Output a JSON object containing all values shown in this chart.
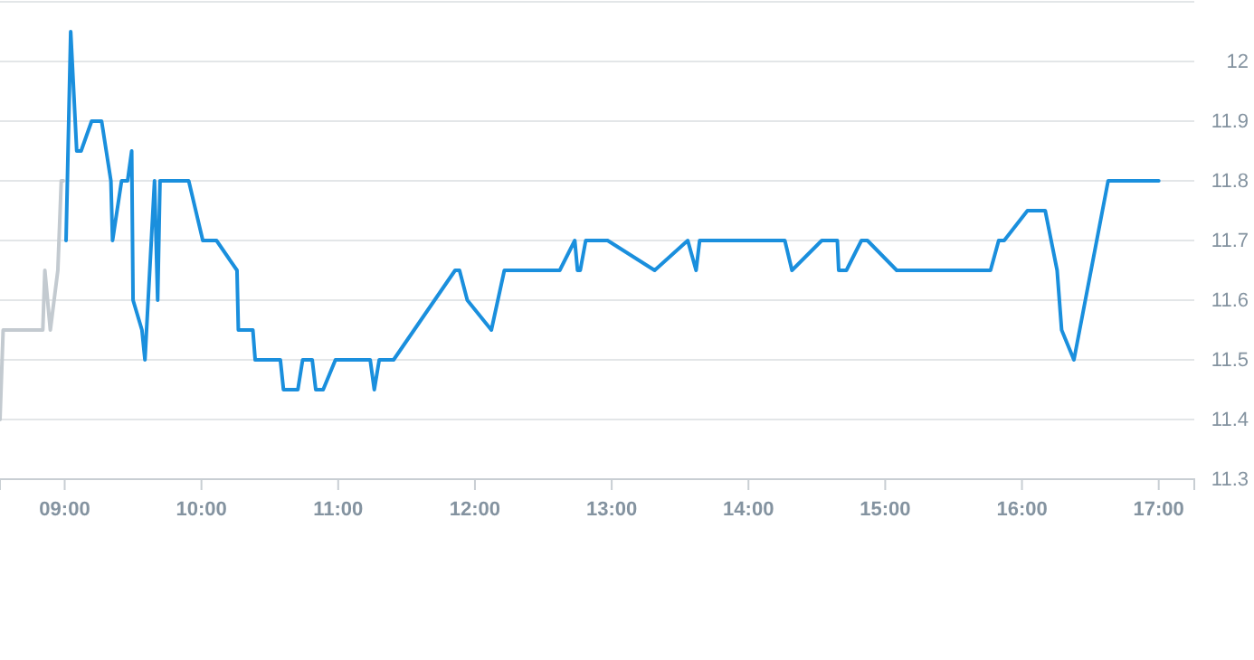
{
  "chart_data": {
    "type": "line",
    "xlim": [
      8.527,
      17.26
    ],
    "ylim": [
      11.3,
      12.1
    ],
    "xticks": [
      {
        "value": 9,
        "label": "09:00"
      },
      {
        "value": 10,
        "label": "10:00"
      },
      {
        "value": 11,
        "label": "11:00"
      },
      {
        "value": 12,
        "label": "12:00"
      },
      {
        "value": 13,
        "label": "13:00"
      },
      {
        "value": 14,
        "label": "14:00"
      },
      {
        "value": 15,
        "label": "15:00"
      },
      {
        "value": 16,
        "label": "16:00"
      },
      {
        "value": 17,
        "label": "17:00"
      }
    ],
    "yticks": [
      11.3,
      11.4,
      11.5,
      11.6,
      11.7,
      11.8,
      11.9,
      12
    ],
    "grid": "y",
    "marker": "none",
    "line_style": "solid",
    "series": [
      {
        "color": "#c3cad0",
        "x": [
          8.527,
          8.55,
          8.84,
          8.855,
          8.895,
          8.95,
          8.975,
          8.99
        ],
        "values": [
          11.4,
          11.55,
          11.55,
          11.65,
          11.55,
          11.65,
          11.8,
          11.8
        ]
      },
      {
        "color": "#1a8fdd",
        "x": [
          9.01,
          9.044,
          9.088,
          9.12,
          9.197,
          9.27,
          9.338,
          9.35,
          9.416,
          9.46,
          9.49,
          9.5,
          9.565,
          9.587,
          9.657,
          9.68,
          9.697,
          9.907,
          10.01,
          10.11,
          10.26,
          10.27,
          10.376,
          10.393,
          10.577,
          10.6,
          10.705,
          10.74,
          10.81,
          10.836,
          10.89,
          10.98,
          11.234,
          11.264,
          11.3,
          11.405,
          11.855,
          11.887,
          11.944,
          12.12,
          12.215,
          12.62,
          12.73,
          12.75,
          12.77,
          12.81,
          12.97,
          13.314,
          13.556,
          13.617,
          13.643,
          14.266,
          14.318,
          14.536,
          14.65,
          14.66,
          14.716,
          14.826,
          14.87,
          15.084,
          15.77,
          15.83,
          15.87,
          16.04,
          16.17,
          16.257,
          16.29,
          16.38,
          16.63,
          17.0
        ],
        "values": [
          11.7,
          12.05,
          11.85,
          11.85,
          11.9,
          11.9,
          11.8,
          11.7,
          11.8,
          11.8,
          11.85,
          11.6,
          11.55,
          11.5,
          11.8,
          11.6,
          11.8,
          11.8,
          11.7,
          11.7,
          11.65,
          11.55,
          11.55,
          11.5,
          11.5,
          11.45,
          11.45,
          11.5,
          11.5,
          11.45,
          11.45,
          11.5,
          11.5,
          11.45,
          11.5,
          11.5,
          11.65,
          11.65,
          11.6,
          11.55,
          11.65,
          11.65,
          11.7,
          11.65,
          11.65,
          11.7,
          11.7,
          11.65,
          11.7,
          11.65,
          11.7,
          11.7,
          11.65,
          11.7,
          11.7,
          11.65,
          11.65,
          11.7,
          11.7,
          11.65,
          11.65,
          11.7,
          11.7,
          11.75,
          11.75,
          11.65,
          11.55,
          11.5,
          11.8,
          11.8
        ]
      }
    ]
  }
}
